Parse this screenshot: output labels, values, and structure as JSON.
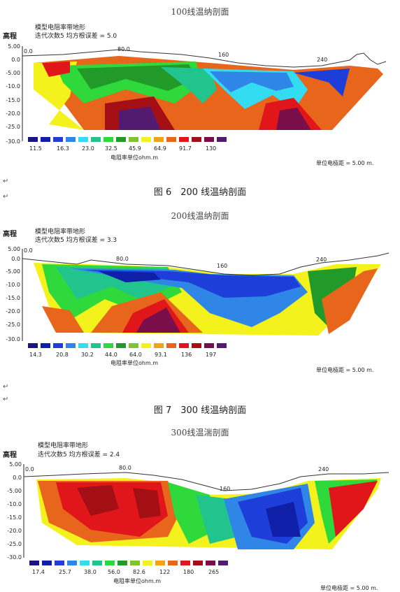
{
  "scale_colors": [
    "#1a1580",
    "#0f1fa8",
    "#1d3ed8",
    "#2f86e6",
    "#34dcf2",
    "#22c48e",
    "#2fd83b",
    "#219a2a",
    "#7ec431",
    "#f4f21c",
    "#f0a315",
    "#e8651c",
    "#e0161a",
    "#a30f14",
    "#7a0e4b",
    "#531b70"
  ],
  "panels": [
    {
      "title": "100线温纳剖面",
      "ylabel": "高程",
      "subtitle_line1": "模型电阻率带地形",
      "subtitle_line2": "迭代次数5 均方根误差 = 5.0",
      "y_ticks": [
        "5.00",
        "0.0",
        "-5.00",
        "-10.0",
        "-15.0",
        "-20.0",
        "-25.0",
        "-30.0"
      ],
      "x_ticks": [
        "0.0",
        "80.0",
        "160",
        "240"
      ],
      "scale_values": [
        "11.5",
        "16.3",
        "23.0",
        "32.5",
        "45.9",
        "64.9",
        "91.7",
        "130"
      ],
      "unit_label": "电阻率单位ohm.m",
      "spacing_label": "单位电极距 = 5.00 m."
    },
    {
      "title": "200线温纳剖面",
      "ylabel": "高程",
      "subtitle_line1": "模型电阻率带地形",
      "subtitle_line2": "迭代次数5 均方根误差 = 3.3",
      "y_ticks": [
        "5.00",
        "0.0",
        "-5.00",
        "-10.0",
        "-15.0",
        "-20.0",
        "-25.0",
        "-30.0"
      ],
      "x_ticks": [
        "0.0",
        "80.0",
        "160",
        "240"
      ],
      "scale_values": [
        "14.3",
        "20.8",
        "30.2",
        "44.0",
        "64.0",
        "93.1",
        "136",
        "197"
      ],
      "unit_label": "电阻率单位ohm.m",
      "spacing_label": "单位电极距 = 5.00 m."
    },
    {
      "title": "300线温湍剖面",
      "ylabel": "高程",
      "subtitle_line1": "模型电阻率带地形",
      "subtitle_line2": "迭代次数5 均方根误差 = 2.4",
      "y_ticks": [
        "5.00",
        "0.0",
        "-5.00",
        "-10.0",
        "-15.0",
        "-20.0",
        "-25.0",
        "-30.0"
      ],
      "x_ticks": [
        "0.0",
        "80.0",
        "160",
        "240"
      ],
      "scale_values": [
        "17.4",
        "25.7",
        "38.0",
        "56.0",
        "82.6",
        "122",
        "180",
        "265"
      ],
      "unit_label": "电阻率单位ohm.m",
      "spacing_label": "单位电极距 = 5.00 m."
    }
  ],
  "captions": {
    "fig6": "图 6　200 线温纳剖面",
    "fig7": "图 7　300 线温纳剖面"
  },
  "para_marks": [
    "↵",
    "↵",
    "↵",
    "↵"
  ]
}
